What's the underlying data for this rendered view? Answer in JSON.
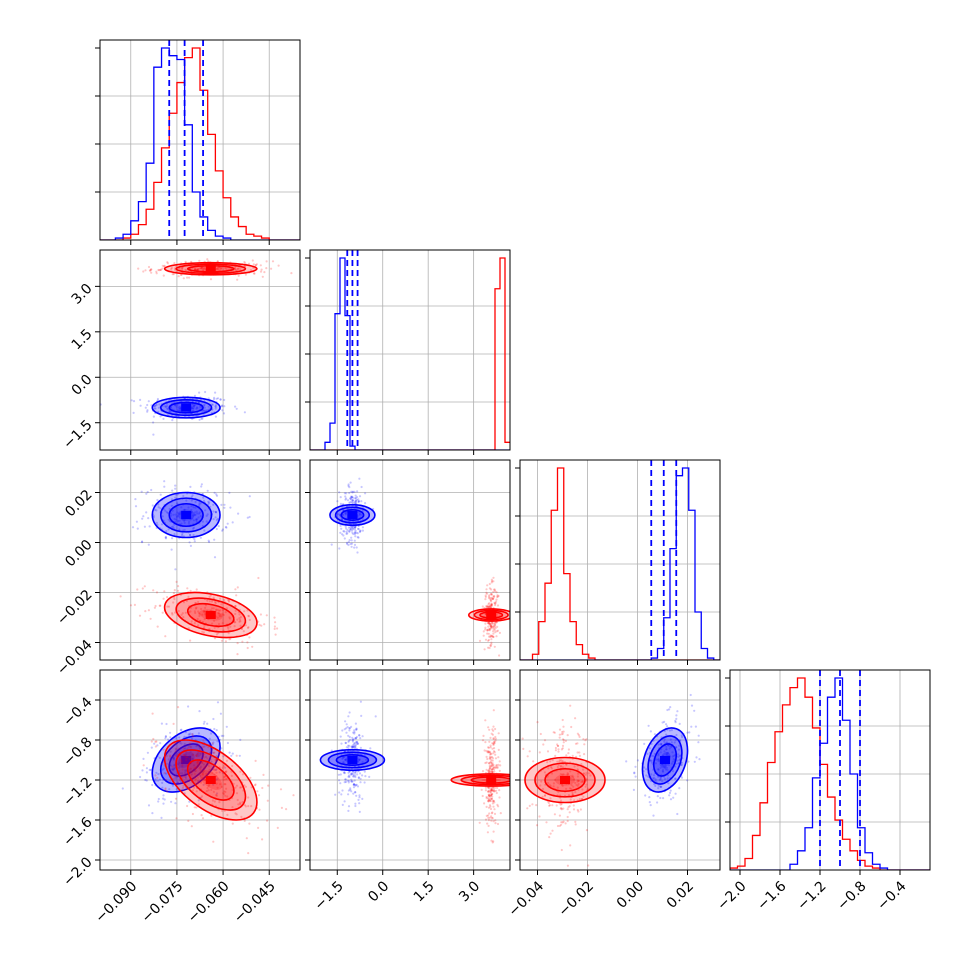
{
  "chart_data": {
    "type": "corner",
    "parameters": [
      {
        "range": [
          -0.1,
          -0.035
        ],
        "ticks": [
          -0.09,
          -0.075,
          -0.06,
          -0.045
        ],
        "tick_labels": [
          "−0.090",
          "−0.075",
          "−0.060",
          "−0.045"
        ]
      },
      {
        "range": [
          -2.4,
          4.2
        ],
        "ticks": [
          -1.5,
          0.0,
          1.5,
          3.0
        ],
        "tick_labels": [
          "−1.5",
          "0.0",
          "1.5",
          "3.0"
        ]
      },
      {
        "range": [
          -0.047,
          0.033
        ],
        "ticks": [
          -0.04,
          -0.02,
          0.0,
          0.02
        ],
        "tick_labels": [
          "−0.04",
          "−0.02",
          "0.00",
          "0.02"
        ]
      },
      {
        "range": [
          -2.1,
          -0.1
        ],
        "ticks": [
          -2.0,
          -1.6,
          -1.2,
          -0.8,
          -0.4
        ],
        "tick_labels": [
          "−2.0",
          "−1.6",
          "−1.2",
          "−0.8",
          "−0.4"
        ]
      }
    ],
    "grid": true,
    "series": [
      {
        "color": "#0000ff",
        "mean": [
          -0.072,
          -1.0,
          0.011,
          -1.0
        ],
        "std": [
          0.0055,
          0.17,
          0.0045,
          0.16
        ],
        "correlations": [
          [
            1,
            0,
            0,
            0.4
          ],
          [
            0,
            1,
            0,
            0
          ],
          [
            0,
            0,
            1,
            0.3
          ],
          [
            0.4,
            0,
            0.3,
            1
          ]
        ],
        "quantiles": [
          [
            -0.0775,
            -0.0725,
            -0.0665
          ],
          [
            -1.17,
            -1.0,
            -0.83
          ],
          [
            0.0055,
            0.0105,
            0.0155
          ],
          [
            -1.2,
            -1.0,
            -0.8
          ]
        ],
        "histograms": [
          {
            "edges_start": -0.1,
            "bin_width": 0.0025,
            "counts": [
              0,
              0,
              1,
              3,
              10,
              20,
              40,
              90,
              100,
              96,
              94,
              60,
              25,
              12,
              5,
              2,
              1,
              0,
              0,
              0,
              0,
              0,
              0,
              0,
              0,
              0
            ]
          },
          {
            "edges_start": -2.4,
            "bin_width": 0.165,
            "counts": [
              0,
              0,
              0,
              4,
              14,
              71,
              100,
              70,
              2,
              0,
              0,
              0,
              0,
              0,
              0,
              0,
              0,
              0,
              0,
              0,
              0,
              0,
              0,
              0,
              0,
              0,
              0,
              0,
              0,
              0,
              0,
              0,
              0,
              0,
              0,
              0,
              0,
              0,
              0,
              0
            ]
          },
          {
            "edges_start": -0.047,
            "bin_width": 0.0025,
            "counts": [
              0,
              0,
              0,
              0,
              0,
              0,
              0,
              0,
              0,
              0,
              0,
              0,
              0,
              0,
              0,
              0,
              0,
              0,
              0,
              0,
              0,
              1,
              6,
              22,
              58,
              96,
              100,
              78,
              25,
              6,
              1,
              0
            ]
          },
          {
            "edges_start": -2.1,
            "bin_width": 0.075,
            "counts": [
              0,
              0,
              0,
              0,
              0,
              0,
              0,
              0,
              3,
              10,
              22,
              48,
              66,
              90,
              100,
              78,
              50,
              22,
              9,
              3,
              1,
              0,
              0,
              0,
              0,
              0,
              0
            ]
          }
        ]
      },
      {
        "color": "#ff0000",
        "mean": [
          -0.064,
          3.58,
          -0.029,
          -1.2
        ],
        "std": [
          0.0075,
          0.1,
          0.0045,
          0.2
        ],
        "correlations": [
          [
            1,
            0,
            -0.35,
            -0.55
          ],
          [
            0,
            1,
            0,
            0
          ],
          [
            -0.35,
            0,
            1,
            0
          ],
          [
            -0.55,
            0,
            0,
            1
          ]
        ],
        "quantiles": null,
        "histograms": [
          {
            "edges_start": -0.1,
            "bin_width": 0.0025,
            "counts": [
              0,
              0,
              0,
              1,
              3,
              8,
              16,
              30,
              48,
              66,
              82,
              95,
              100,
              78,
              55,
              36,
              22,
              12,
              7,
              3,
              2,
              1,
              0,
              0,
              0,
              0
            ]
          },
          {
            "edges_start": -2.4,
            "bin_width": 0.165,
            "counts": [
              0,
              0,
              0,
              0,
              0,
              0,
              0,
              0,
              0,
              0,
              0,
              0,
              0,
              0,
              0,
              0,
              0,
              0,
              0,
              0,
              0,
              0,
              0,
              0,
              0,
              0,
              0,
              0,
              0,
              0,
              0,
              0,
              0,
              0,
              0,
              0,
              0,
              84,
              100,
              4
            ]
          },
          {
            "edges_start": -0.047,
            "bin_width": 0.0025,
            "counts": [
              0,
              0,
              3,
              20,
              40,
              78,
              100,
              45,
              20,
              8,
              3,
              1,
              0,
              0,
              0,
              0,
              0,
              0,
              0,
              0,
              0,
              0,
              0,
              0,
              0,
              0,
              0,
              0,
              0,
              0,
              0,
              0
            ]
          },
          {
            "edges_start": -2.1,
            "bin_width": 0.075,
            "counts": [
              1,
              2,
              6,
              18,
              35,
              56,
              72,
              86,
              95,
              100,
              90,
              74,
              55,
              38,
              26,
              16,
              10,
              5,
              2,
              1,
              0,
              0,
              0,
              0,
              0,
              0,
              0
            ]
          }
        ]
      }
    ]
  }
}
